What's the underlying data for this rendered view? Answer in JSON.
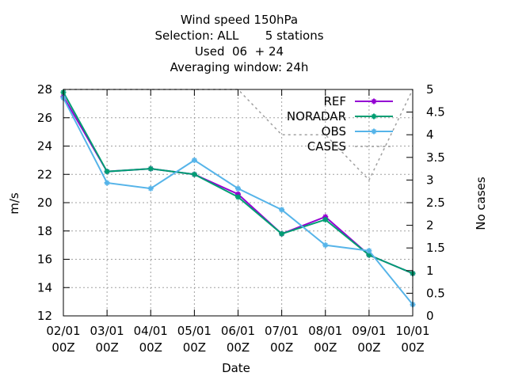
{
  "chart_data": {
    "type": "line",
    "title_lines": [
      "Wind speed 150hPa",
      "Selection: ALL       5 stations",
      "Used  06  + 24",
      "Averaging window: 24h"
    ],
    "xlabel": "Date",
    "ylabel": "m/s",
    "y2label": "No cases",
    "categories": [
      "02/01\n00Z",
      "03/01\n00Z",
      "04/01\n00Z",
      "05/01\n00Z",
      "06/01\n00Z",
      "07/01\n00Z",
      "08/01\n00Z",
      "09/01\n00Z",
      "10/01\n00Z"
    ],
    "ylim": [
      12,
      28
    ],
    "yticks": [
      12,
      14,
      16,
      18,
      20,
      22,
      24,
      26,
      28
    ],
    "y2lim": [
      0,
      5
    ],
    "y2ticks": [
      "0",
      "0.5",
      "1",
      "1.5",
      "2",
      "2.5",
      "3",
      "3.5",
      "4",
      "4.5",
      "5"
    ],
    "grid": true,
    "legend_position": "top-right",
    "series": [
      {
        "name": "REF",
        "axis": "y",
        "color": "#9400d3",
        "marker": "plus-star",
        "values": [
          27.5,
          22.2,
          22.4,
          22.0,
          20.6,
          17.8,
          19.0,
          16.3,
          15.0
        ]
      },
      {
        "name": "NORADAR",
        "axis": "y",
        "color": "#009e73",
        "marker": "star",
        "values": [
          27.8,
          22.2,
          22.4,
          22.0,
          20.4,
          17.8,
          18.8,
          16.3,
          15.0
        ]
      },
      {
        "name": "OBS",
        "axis": "y",
        "color": "#56b4e9",
        "marker": "star",
        "values": [
          27.4,
          21.4,
          21.0,
          23.0,
          21.0,
          19.5,
          17.0,
          16.6,
          12.8
        ]
      },
      {
        "name": "CASES",
        "axis": "y2",
        "color": "#a0a0a0",
        "dashed": true,
        "values": [
          5,
          5,
          5,
          5,
          5,
          4,
          4,
          3,
          5
        ]
      }
    ]
  }
}
